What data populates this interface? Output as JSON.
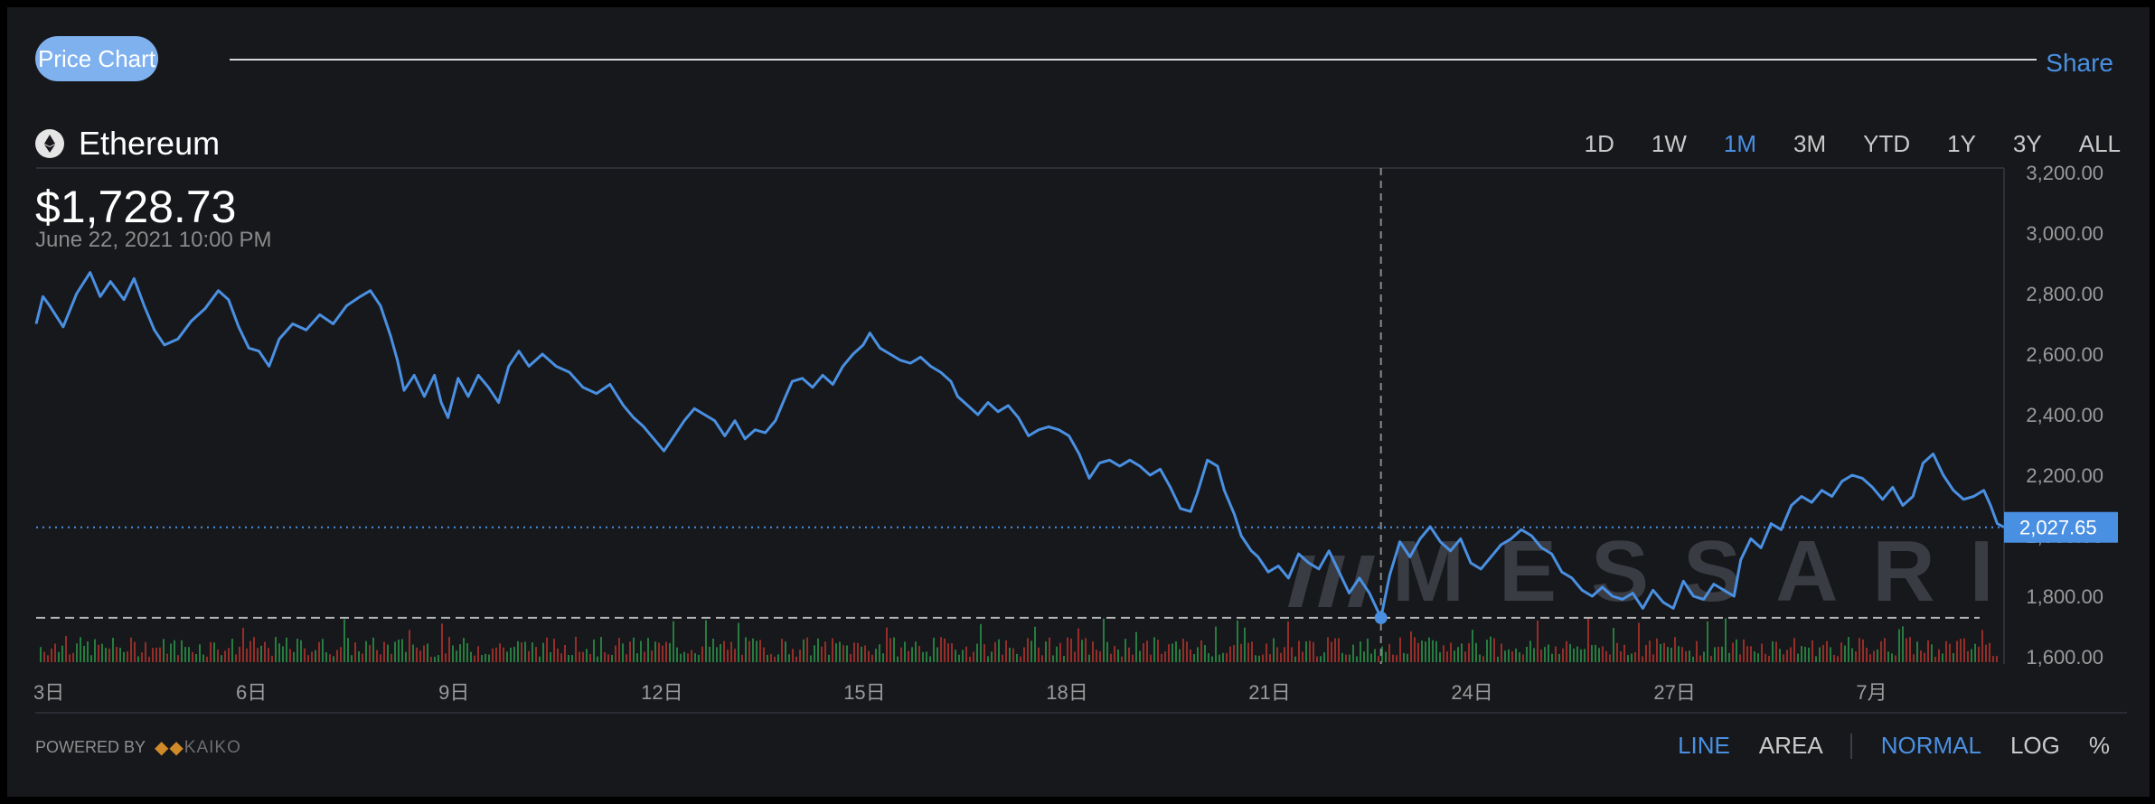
{
  "header": {
    "tag_label": "Price Chart",
    "share_label": "Share"
  },
  "asset": {
    "name": "Ethereum",
    "icon": "ethereum-icon"
  },
  "ranges": [
    {
      "label": "1D",
      "active": false
    },
    {
      "label": "1W",
      "active": false
    },
    {
      "label": "1M",
      "active": true
    },
    {
      "label": "3M",
      "active": false
    },
    {
      "label": "YTD",
      "active": false
    },
    {
      "label": "1Y",
      "active": false
    },
    {
      "label": "3Y",
      "active": false
    },
    {
      "label": "ALL",
      "active": false
    }
  ],
  "hover": {
    "price": "$1,728.73",
    "date": "June 22, 2021 10:00 PM"
  },
  "footer": {
    "powered_by": "POWERED BY",
    "provider": "KAIKO",
    "chart_types": [
      "LINE",
      "AREA"
    ],
    "active_type": "LINE",
    "scales": [
      "NORMAL",
      "LOG",
      "%"
    ],
    "active_scale": "NORMAL"
  },
  "watermark": "MESSARI",
  "colors": {
    "line": "#4a90e2",
    "up_volume": "#2e9e4b",
    "down_volume": "#c0362c",
    "background": "#17181c"
  },
  "chart_data": {
    "type": "line",
    "title": "",
    "xlabel": "",
    "ylabel": "",
    "ylim": [
      1600,
      3200
    ],
    "y_ticks": [
      "1,600.00",
      "1,800.00",
      "2,000.00",
      "2,200.00",
      "2,400.00",
      "2,600.00",
      "2,800.00",
      "3,000.00",
      "3,200.00"
    ],
    "x_ticks": [
      {
        "label": "3日",
        "day": 3
      },
      {
        "label": "6日",
        "day": 6
      },
      {
        "label": "9日",
        "day": 9
      },
      {
        "label": "12日",
        "day": 12
      },
      {
        "label": "15日",
        "day": 15
      },
      {
        "label": "18日",
        "day": 18
      },
      {
        "label": "21日",
        "day": 21
      },
      {
        "label": "24日",
        "day": 24
      },
      {
        "label": "27日",
        "day": 27
      },
      {
        "label": "7月",
        "day": 30
      }
    ],
    "last_value": "2,027.65",
    "last_value_num": 2027.65,
    "crosshair": {
      "day": 22.92,
      "value": 1728.73
    },
    "series": [
      {
        "values": [
          {
            "day": 3.0,
            "y": 2700
          },
          {
            "day": 3.1,
            "y": 2790
          },
          {
            "day": 3.2,
            "y": 2760
          },
          {
            "day": 3.4,
            "y": 2690
          },
          {
            "day": 3.6,
            "y": 2800
          },
          {
            "day": 3.8,
            "y": 2870
          },
          {
            "day": 3.95,
            "y": 2790
          },
          {
            "day": 4.1,
            "y": 2840
          },
          {
            "day": 4.3,
            "y": 2780
          },
          {
            "day": 4.45,
            "y": 2850
          },
          {
            "day": 4.6,
            "y": 2760
          },
          {
            "day": 4.75,
            "y": 2680
          },
          {
            "day": 4.9,
            "y": 2630
          },
          {
            "day": 5.1,
            "y": 2650
          },
          {
            "day": 5.3,
            "y": 2710
          },
          {
            "day": 5.5,
            "y": 2750
          },
          {
            "day": 5.7,
            "y": 2810
          },
          {
            "day": 5.85,
            "y": 2780
          },
          {
            "day": 6.0,
            "y": 2690
          },
          {
            "day": 6.15,
            "y": 2620
          },
          {
            "day": 6.3,
            "y": 2610
          },
          {
            "day": 6.45,
            "y": 2560
          },
          {
            "day": 6.6,
            "y": 2650
          },
          {
            "day": 6.8,
            "y": 2700
          },
          {
            "day": 7.0,
            "y": 2680
          },
          {
            "day": 7.2,
            "y": 2730
          },
          {
            "day": 7.4,
            "y": 2700
          },
          {
            "day": 7.6,
            "y": 2760
          },
          {
            "day": 7.8,
            "y": 2790
          },
          {
            "day": 7.95,
            "y": 2810
          },
          {
            "day": 8.1,
            "y": 2760
          },
          {
            "day": 8.25,
            "y": 2660
          },
          {
            "day": 8.35,
            "y": 2580
          },
          {
            "day": 8.45,
            "y": 2480
          },
          {
            "day": 8.6,
            "y": 2530
          },
          {
            "day": 8.75,
            "y": 2460
          },
          {
            "day": 8.9,
            "y": 2530
          },
          {
            "day": 9.0,
            "y": 2440
          },
          {
            "day": 9.1,
            "y": 2390
          },
          {
            "day": 9.25,
            "y": 2520
          },
          {
            "day": 9.4,
            "y": 2460
          },
          {
            "day": 9.55,
            "y": 2530
          },
          {
            "day": 9.7,
            "y": 2490
          },
          {
            "day": 9.85,
            "y": 2440
          },
          {
            "day": 10.0,
            "y": 2560
          },
          {
            "day": 10.15,
            "y": 2610
          },
          {
            "day": 10.3,
            "y": 2560
          },
          {
            "day": 10.5,
            "y": 2600
          },
          {
            "day": 10.7,
            "y": 2560
          },
          {
            "day": 10.9,
            "y": 2540
          },
          {
            "day": 11.1,
            "y": 2490
          },
          {
            "day": 11.3,
            "y": 2470
          },
          {
            "day": 11.5,
            "y": 2500
          },
          {
            "day": 11.7,
            "y": 2430
          },
          {
            "day": 11.85,
            "y": 2390
          },
          {
            "day": 12.0,
            "y": 2360
          },
          {
            "day": 12.15,
            "y": 2320
          },
          {
            "day": 12.3,
            "y": 2280
          },
          {
            "day": 12.45,
            "y": 2330
          },
          {
            "day": 12.6,
            "y": 2380
          },
          {
            "day": 12.75,
            "y": 2420
          },
          {
            "day": 12.9,
            "y": 2400
          },
          {
            "day": 13.05,
            "y": 2380
          },
          {
            "day": 13.2,
            "y": 2330
          },
          {
            "day": 13.35,
            "y": 2380
          },
          {
            "day": 13.5,
            "y": 2320
          },
          {
            "day": 13.65,
            "y": 2350
          },
          {
            "day": 13.8,
            "y": 2340
          },
          {
            "day": 13.95,
            "y": 2380
          },
          {
            "day": 14.1,
            "y": 2460
          },
          {
            "day": 14.2,
            "y": 2510
          },
          {
            "day": 14.35,
            "y": 2520
          },
          {
            "day": 14.5,
            "y": 2490
          },
          {
            "day": 14.65,
            "y": 2530
          },
          {
            "day": 14.8,
            "y": 2500
          },
          {
            "day": 14.95,
            "y": 2560
          },
          {
            "day": 15.1,
            "y": 2600
          },
          {
            "day": 15.25,
            "y": 2630
          },
          {
            "day": 15.35,
            "y": 2670
          },
          {
            "day": 15.5,
            "y": 2620
          },
          {
            "day": 15.65,
            "y": 2600
          },
          {
            "day": 15.8,
            "y": 2580
          },
          {
            "day": 15.95,
            "y": 2570
          },
          {
            "day": 16.1,
            "y": 2590
          },
          {
            "day": 16.25,
            "y": 2560
          },
          {
            "day": 16.4,
            "y": 2540
          },
          {
            "day": 16.55,
            "y": 2510
          },
          {
            "day": 16.65,
            "y": 2460
          },
          {
            "day": 16.8,
            "y": 2430
          },
          {
            "day": 16.95,
            "y": 2400
          },
          {
            "day": 17.1,
            "y": 2440
          },
          {
            "day": 17.25,
            "y": 2410
          },
          {
            "day": 17.4,
            "y": 2430
          },
          {
            "day": 17.55,
            "y": 2390
          },
          {
            "day": 17.7,
            "y": 2330
          },
          {
            "day": 17.85,
            "y": 2350
          },
          {
            "day": 18.0,
            "y": 2360
          },
          {
            "day": 18.15,
            "y": 2350
          },
          {
            "day": 18.3,
            "y": 2330
          },
          {
            "day": 18.45,
            "y": 2270
          },
          {
            "day": 18.6,
            "y": 2190
          },
          {
            "day": 18.75,
            "y": 2240
          },
          {
            "day": 18.9,
            "y": 2250
          },
          {
            "day": 19.05,
            "y": 2230
          },
          {
            "day": 19.2,
            "y": 2250
          },
          {
            "day": 19.35,
            "y": 2230
          },
          {
            "day": 19.5,
            "y": 2200
          },
          {
            "day": 19.65,
            "y": 2220
          },
          {
            "day": 19.8,
            "y": 2160
          },
          {
            "day": 19.95,
            "y": 2090
          },
          {
            "day": 20.1,
            "y": 2080
          },
          {
            "day": 20.2,
            "y": 2140
          },
          {
            "day": 20.35,
            "y": 2250
          },
          {
            "day": 20.5,
            "y": 2230
          },
          {
            "day": 20.6,
            "y": 2150
          },
          {
            "day": 20.75,
            "y": 2070
          },
          {
            "day": 20.85,
            "y": 2000
          },
          {
            "day": 21.0,
            "y": 1950
          },
          {
            "day": 21.1,
            "y": 1930
          },
          {
            "day": 21.25,
            "y": 1880
          },
          {
            "day": 21.4,
            "y": 1900
          },
          {
            "day": 21.55,
            "y": 1860
          },
          {
            "day": 21.7,
            "y": 1940
          },
          {
            "day": 21.85,
            "y": 1910
          },
          {
            "day": 22.0,
            "y": 1890
          },
          {
            "day": 22.15,
            "y": 1950
          },
          {
            "day": 22.3,
            "y": 1880
          },
          {
            "day": 22.45,
            "y": 1810
          },
          {
            "day": 22.6,
            "y": 1860
          },
          {
            "day": 22.75,
            "y": 1810
          },
          {
            "day": 22.92,
            "y": 1728.73
          },
          {
            "day": 23.05,
            "y": 1870
          },
          {
            "day": 23.2,
            "y": 1980
          },
          {
            "day": 23.35,
            "y": 1930
          },
          {
            "day": 23.5,
            "y": 1990
          },
          {
            "day": 23.65,
            "y": 2030
          },
          {
            "day": 23.8,
            "y": 1980
          },
          {
            "day": 23.95,
            "y": 1950
          },
          {
            "day": 24.1,
            "y": 1990
          },
          {
            "day": 24.25,
            "y": 1910
          },
          {
            "day": 24.4,
            "y": 1890
          },
          {
            "day": 24.55,
            "y": 1930
          },
          {
            "day": 24.7,
            "y": 1970
          },
          {
            "day": 24.85,
            "y": 1990
          },
          {
            "day": 25.0,
            "y": 2020
          },
          {
            "day": 25.15,
            "y": 2000
          },
          {
            "day": 25.3,
            "y": 1960
          },
          {
            "day": 25.45,
            "y": 1940
          },
          {
            "day": 25.6,
            "y": 1880
          },
          {
            "day": 25.75,
            "y": 1860
          },
          {
            "day": 25.9,
            "y": 1820
          },
          {
            "day": 26.05,
            "y": 1800
          },
          {
            "day": 26.2,
            "y": 1830
          },
          {
            "day": 26.35,
            "y": 1800
          },
          {
            "day": 26.5,
            "y": 1790
          },
          {
            "day": 26.65,
            "y": 1810
          },
          {
            "day": 26.8,
            "y": 1760
          },
          {
            "day": 26.95,
            "y": 1820
          },
          {
            "day": 27.1,
            "y": 1780
          },
          {
            "day": 27.25,
            "y": 1760
          },
          {
            "day": 27.4,
            "y": 1850
          },
          {
            "day": 27.55,
            "y": 1800
          },
          {
            "day": 27.7,
            "y": 1790
          },
          {
            "day": 27.85,
            "y": 1840
          },
          {
            "day": 28.0,
            "y": 1820
          },
          {
            "day": 28.15,
            "y": 1800
          },
          {
            "day": 28.25,
            "y": 1920
          },
          {
            "day": 28.4,
            "y": 1990
          },
          {
            "day": 28.55,
            "y": 1960
          },
          {
            "day": 28.7,
            "y": 2040
          },
          {
            "day": 28.85,
            "y": 2020
          },
          {
            "day": 29.0,
            "y": 2100
          },
          {
            "day": 29.15,
            "y": 2130
          },
          {
            "day": 29.3,
            "y": 2110
          },
          {
            "day": 29.45,
            "y": 2150
          },
          {
            "day": 29.6,
            "y": 2130
          },
          {
            "day": 29.75,
            "y": 2180
          },
          {
            "day": 29.9,
            "y": 2200
          },
          {
            "day": 30.05,
            "y": 2190
          },
          {
            "day": 30.2,
            "y": 2160
          },
          {
            "day": 30.35,
            "y": 2120
          },
          {
            "day": 30.5,
            "y": 2160
          },
          {
            "day": 30.65,
            "y": 2100
          },
          {
            "day": 30.8,
            "y": 2130
          },
          {
            "day": 30.95,
            "y": 2240
          },
          {
            "day": 31.1,
            "y": 2270
          },
          {
            "day": 31.25,
            "y": 2200
          },
          {
            "day": 31.4,
            "y": 2150
          },
          {
            "day": 31.55,
            "y": 2120
          },
          {
            "day": 31.7,
            "y": 2130
          },
          {
            "day": 31.85,
            "y": 2150
          },
          {
            "day": 31.95,
            "y": 2100
          },
          {
            "day": 32.05,
            "y": 2040
          },
          {
            "day": 32.15,
            "y": 2027.65
          }
        ]
      }
    ]
  }
}
